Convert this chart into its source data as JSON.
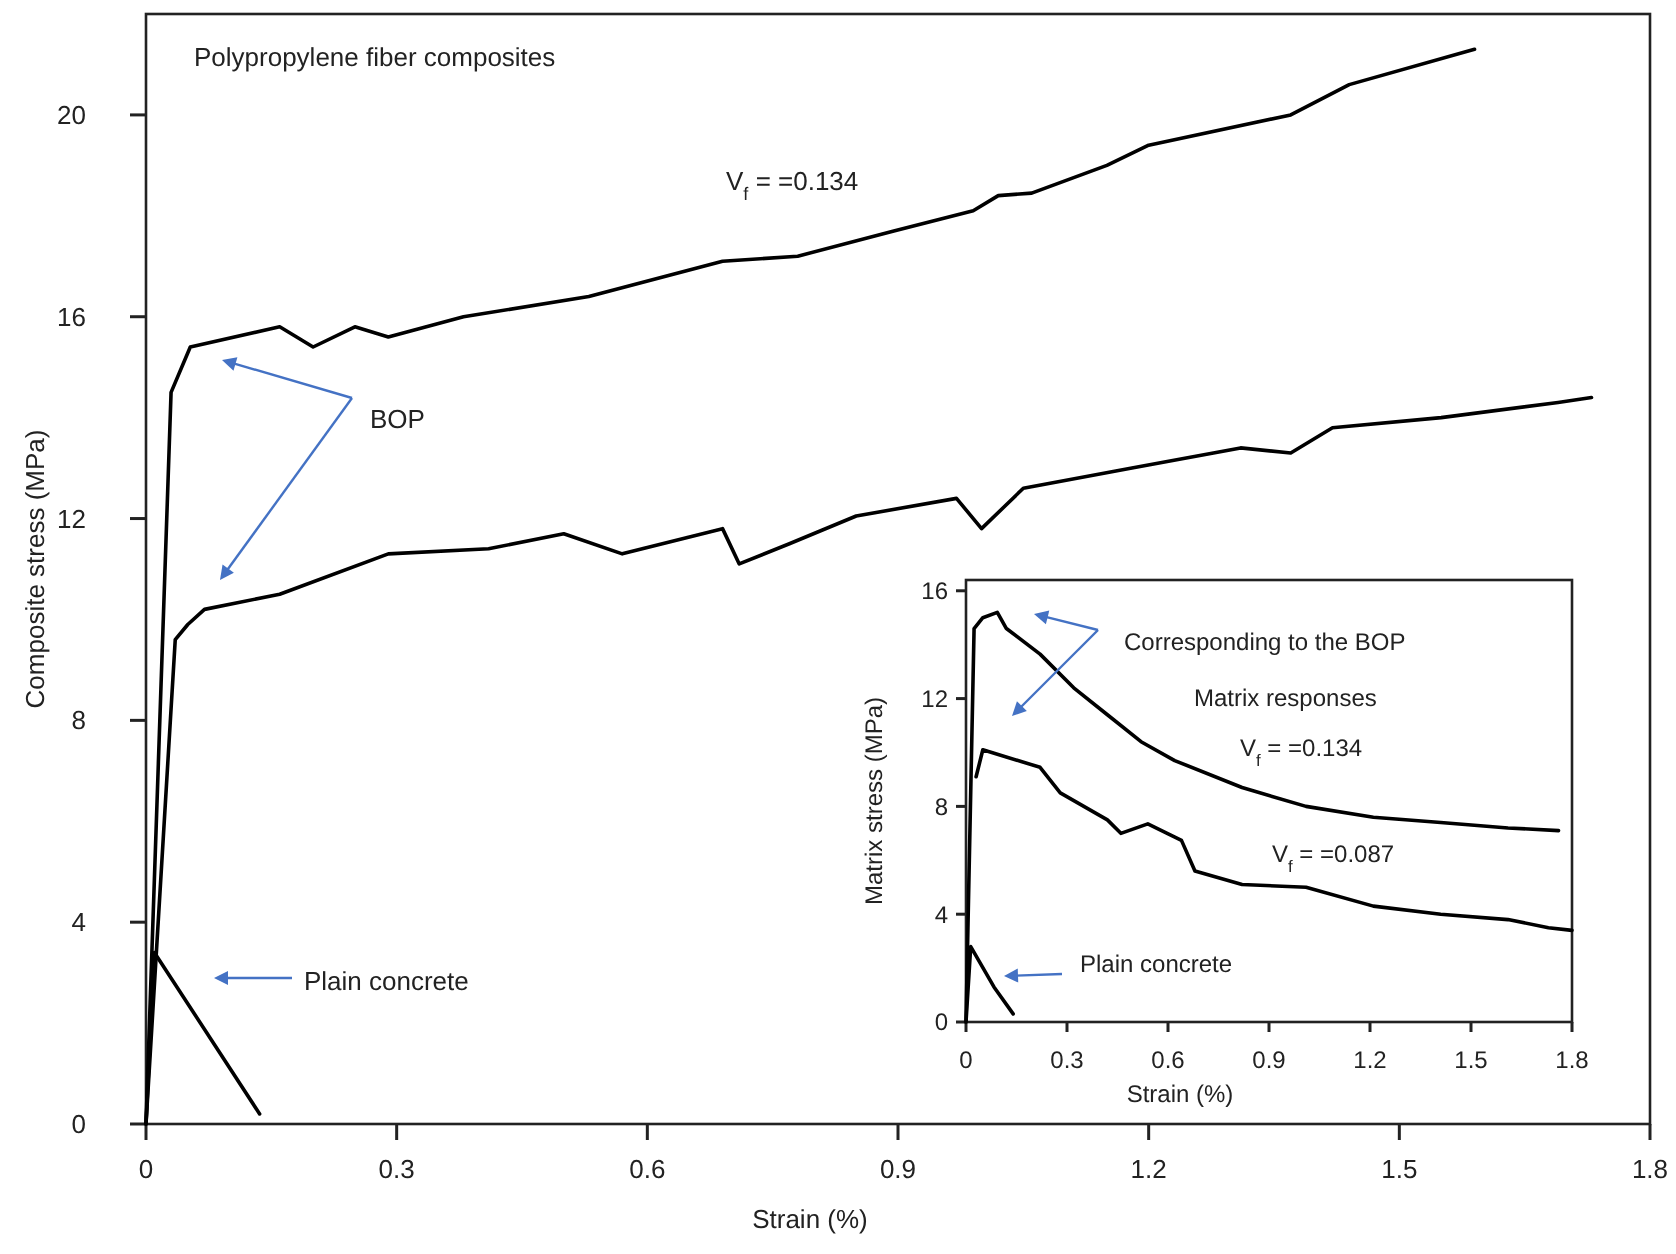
{
  "chart_data": [
    {
      "type": "line",
      "xlabel": "Strain (%)",
      "ylabel": "Composite stress (MPa)",
      "xlim": [
        0,
        1.8
      ],
      "xticks": [
        0,
        0.3,
        0.6,
        0.9,
        1.2,
        1.5,
        1.8
      ],
      "ylim": [
        0,
        22
      ],
      "yticks": [
        0,
        4,
        8,
        12,
        16,
        20
      ],
      "marker": "none",
      "line_style": "solid",
      "legend": false,
      "grid": false,
      "annotations": [
        "Polypropylene fiber composites",
        "BOP",
        "Plain concrete"
      ],
      "series": [
        {
          "name": "V$_{f}$ = =0.134",
          "color": "#000000",
          "x": [
            0,
            0.03,
            0.053,
            0.16,
            0.2,
            0.25,
            0.29,
            0.38,
            0.53,
            0.69,
            0.78,
            0.895,
            0.99,
            1.02,
            1.06,
            1.15,
            1.2,
            1.37,
            1.44,
            1.59
          ],
          "values": [
            0,
            14.5,
            15.4,
            15.8,
            15.4,
            15.8,
            15.6,
            16.0,
            16.4,
            17.1,
            17.2,
            17.7,
            18.1,
            18.4,
            18.45,
            19.0,
            19.4,
            20.0,
            20.6,
            21.3
          ]
        },
        {
          "color": "#000000",
          "x": [
            0,
            0.035,
            0.05,
            0.07,
            0.16,
            0.29,
            0.41,
            0.5,
            0.57,
            0.69,
            0.71,
            0.77,
            0.85,
            0.97,
            1.0,
            1.05,
            1.18,
            1.31,
            1.37,
            1.42,
            1.55,
            1.69,
            1.73
          ],
          "values": [
            0,
            9.6,
            9.9,
            10.2,
            10.5,
            11.3,
            11.4,
            11.7,
            11.3,
            11.8,
            11.1,
            11.5,
            12.05,
            12.4,
            11.8,
            12.6,
            13.0,
            13.4,
            13.3,
            13.8,
            14.0,
            14.3,
            14.4
          ]
        },
        {
          "color": "#000000",
          "x": [
            0,
            0.01,
            0.136
          ],
          "values": [
            0,
            3.4,
            0.2
          ]
        }
      ]
    },
    {
      "type": "line",
      "xlabel": "Strain (%)",
      "ylabel": "Matrix stress (MPa)",
      "xlim": [
        0,
        1.8
      ],
      "xticks": [
        0,
        0.3,
        0.6,
        0.9,
        1.2,
        1.5,
        1.8
      ],
      "ylim": [
        0,
        16.4
      ],
      "yticks": [
        0,
        4,
        8,
        12,
        16
      ],
      "marker": "none",
      "line_style": "solid",
      "legend": false,
      "grid": false,
      "annotations": [
        "Corresponding to the BOP",
        "Matrix responses",
        "Plain concrete"
      ],
      "series": [
        {
          "name": "V$_{f}$ = =0.134",
          "color": "#000000",
          "x": [
            0,
            0.024,
            0.05,
            0.093,
            0.12,
            0.22,
            0.32,
            0.42,
            0.52,
            0.62,
            0.82,
            1.01,
            1.21,
            1.41,
            1.61,
            1.76
          ],
          "values": [
            0,
            14.6,
            15.0,
            15.2,
            14.6,
            13.65,
            12.4,
            11.4,
            10.4,
            9.7,
            8.7,
            8.0,
            7.6,
            7.4,
            7.2,
            7.1
          ]
        },
        {
          "name": "V$_{f}$ = =0.087",
          "color": "#000000",
          "x": [
            0.03,
            0.05,
            0.22,
            0.28,
            0.42,
            0.46,
            0.54,
            0.64,
            0.68,
            0.82,
            1.01,
            1.21,
            1.41,
            1.61,
            1.73,
            1.8
          ],
          "values": [
            9.1,
            10.1,
            9.45,
            8.5,
            7.5,
            7.0,
            7.35,
            6.74,
            5.6,
            5.1,
            5.0,
            4.3,
            4.0,
            3.8,
            3.5,
            3.4
          ]
        },
        {
          "color": "#000000",
          "x": [
            0,
            0.014,
            0.083,
            0.14
          ],
          "values": [
            0,
            2.8,
            1.3,
            0.3
          ]
        }
      ]
    }
  ]
}
